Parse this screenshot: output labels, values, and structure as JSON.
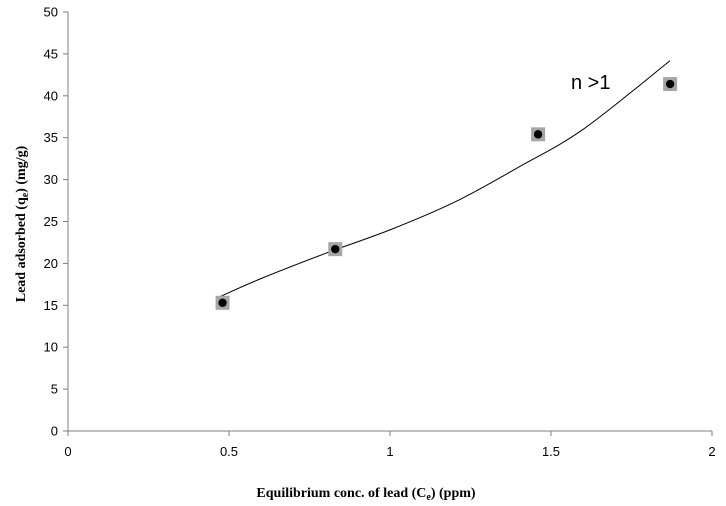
{
  "chart_data": {
    "type": "scatter",
    "xlabel_main": "Equilibrium  conc. of lead (C",
    "xlabel_sub": "e",
    "xlabel_tail": ") (ppm)",
    "ylabel_main": "Lead adsorbed (q",
    "ylabel_sub": "e",
    "ylabel_tail": ") (mg/g)",
    "xlim": [
      0,
      2
    ],
    "ylim": [
      0,
      50
    ],
    "x_ticks": [
      0,
      0.5,
      1,
      1.5,
      2
    ],
    "x_tick_labels": [
      "0",
      "0.5",
      "1",
      "1.5",
      "2"
    ],
    "y_ticks": [
      0,
      5,
      10,
      15,
      20,
      25,
      30,
      35,
      40,
      45,
      50
    ],
    "y_tick_labels": [
      "0",
      "5",
      "10",
      "15",
      "20",
      "25",
      "30",
      "35",
      "40",
      "45",
      "50"
    ],
    "grid": false,
    "points": [
      {
        "x": 0.48,
        "y": 15.3
      },
      {
        "x": 0.83,
        "y": 21.7
      },
      {
        "x": 1.46,
        "y": 35.4
      },
      {
        "x": 1.87,
        "y": 41.4
      }
    ],
    "trendline": {
      "x": [
        0.47,
        0.6,
        0.8,
        1.0,
        1.2,
        1.4,
        1.6,
        1.87
      ],
      "y": [
        16.0,
        18.2,
        21.2,
        24.0,
        27.3,
        31.5,
        36.0,
        44.2
      ]
    },
    "annotation": "n >1",
    "colors": {
      "axis": "#7f7f7f",
      "marker_square": "#a6a6a6",
      "marker_dot": "#000000",
      "trendline": "#000000"
    }
  }
}
